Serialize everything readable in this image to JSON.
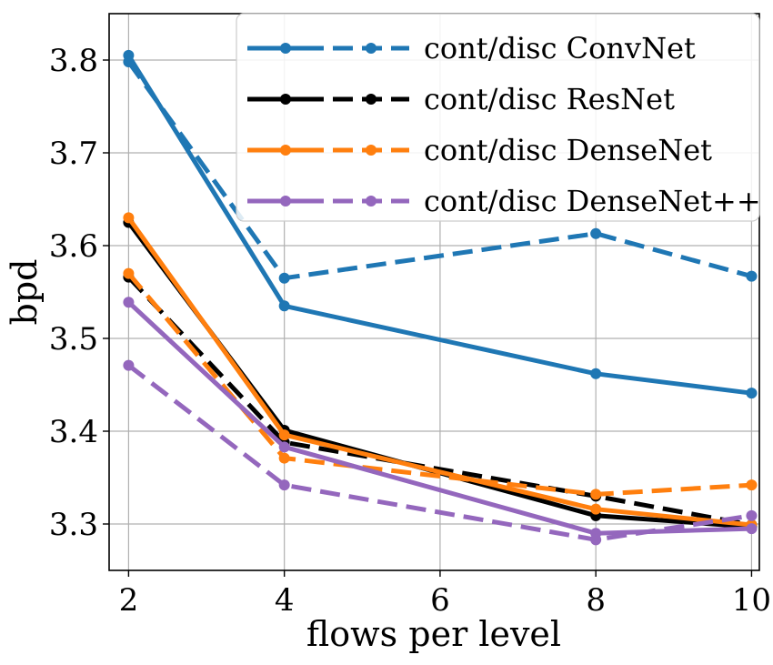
{
  "chart_data": {
    "type": "line",
    "xlabel": "flows per level",
    "ylabel": "bpd",
    "x": [
      2,
      4,
      8,
      10
    ],
    "xlim": [
      1.75,
      10.1
    ],
    "ylim": [
      3.25,
      3.85
    ],
    "xticks": [
      2,
      4,
      6,
      8,
      10
    ],
    "yticks": [
      3.3,
      3.4,
      3.5,
      3.6,
      3.7,
      3.8
    ],
    "xtick_labels": [
      "2",
      "4",
      "6",
      "8",
      "10"
    ],
    "ytick_labels": [
      "3.3",
      "3.4",
      "3.5",
      "3.6",
      "3.7",
      "3.8"
    ],
    "grid": true,
    "legend_position": "top-right",
    "legend": [
      {
        "label": "cont/disc ConvNet",
        "color": "#1f77b4"
      },
      {
        "label": "cont/disc ResNet",
        "color": "#000000"
      },
      {
        "label": "cont/disc DenseNet",
        "color": "#ff7f0e"
      },
      {
        "label": "cont/disc DenseNet++",
        "color": "#9467bd"
      }
    ],
    "series": [
      {
        "model": "ConvNet",
        "style": "solid",
        "color": "#1f77b4",
        "values": [
          3.805,
          3.535,
          3.462,
          3.441
        ]
      },
      {
        "model": "ConvNet",
        "style": "dashed",
        "color": "#1f77b4",
        "values": [
          3.798,
          3.565,
          3.613,
          3.567
        ]
      },
      {
        "model": "ResNet",
        "style": "solid",
        "color": "#000000",
        "values": [
          3.625,
          3.401,
          3.309,
          3.297
        ]
      },
      {
        "model": "ResNet",
        "style": "dashed",
        "color": "#000000",
        "values": [
          3.566,
          3.388,
          3.33,
          3.299
        ]
      },
      {
        "model": "DenseNet",
        "style": "solid",
        "color": "#ff7f0e",
        "values": [
          3.63,
          3.396,
          3.316,
          3.299
        ]
      },
      {
        "model": "DenseNet",
        "style": "dashed",
        "color": "#ff7f0e",
        "values": [
          3.57,
          3.371,
          3.332,
          3.342
        ]
      },
      {
        "model": "DenseNet++",
        "style": "solid",
        "color": "#9467bd",
        "values": [
          3.539,
          3.383,
          3.29,
          3.295
        ]
      },
      {
        "model": "DenseNet++",
        "style": "dashed",
        "color": "#9467bd",
        "values": [
          3.471,
          3.342,
          3.283,
          3.309
        ]
      }
    ]
  }
}
